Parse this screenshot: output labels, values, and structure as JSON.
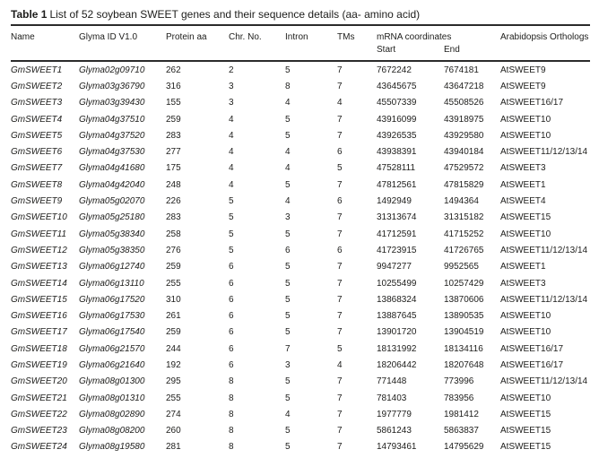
{
  "title": {
    "label": "Table 1",
    "text": "List of 52 soybean SWEET genes and their sequence details (aa- amino acid)"
  },
  "table": {
    "header": {
      "name": "Name",
      "glyma_id": "Glyma ID V1.0",
      "protein_aa": "Protein aa",
      "chr_no": "Chr. No.",
      "intron": "Intron",
      "tms": "TMs",
      "mrna": "mRNA coordinates",
      "start": "Start",
      "end": "End",
      "orthologs": "Arabidopsis Orthologs"
    },
    "rows": [
      {
        "name": "GmSWEET1",
        "glyma_id": "Glyma02g09710",
        "protein_aa": "262",
        "chr_no": "2",
        "intron": "5",
        "tms": "7",
        "mrna_start": "7672242",
        "mrna_end": "7674181",
        "ortholog": "AtSWEET9"
      },
      {
        "name": "GmSWEET2",
        "glyma_id": "Glyma03g36790",
        "protein_aa": "316",
        "chr_no": "3",
        "intron": "8",
        "tms": "7",
        "mrna_start": "43645675",
        "mrna_end": "43647218",
        "ortholog": "AtSWEET9"
      },
      {
        "name": "GmSWEET3",
        "glyma_id": "Glyma03g39430",
        "protein_aa": "155",
        "chr_no": "3",
        "intron": "4",
        "tms": "4",
        "mrna_start": "45507339",
        "mrna_end": "45508526",
        "ortholog": "AtSWEET16/17"
      },
      {
        "name": "GmSWEET4",
        "glyma_id": "Glyma04g37510",
        "protein_aa": "259",
        "chr_no": "4",
        "intron": "5",
        "tms": "7",
        "mrna_start": "43916099",
        "mrna_end": "43918975",
        "ortholog": "AtSWEET10"
      },
      {
        "name": "GmSWEET5",
        "glyma_id": "Glyma04g37520",
        "protein_aa": "283",
        "chr_no": "4",
        "intron": "5",
        "tms": "7",
        "mrna_start": "43926535",
        "mrna_end": "43929580",
        "ortholog": "AtSWEET10"
      },
      {
        "name": "GmSWEET6",
        "glyma_id": "Glyma04g37530",
        "protein_aa": "277",
        "chr_no": "4",
        "intron": "4",
        "tms": "6",
        "mrna_start": "43938391",
        "mrna_end": "43940184",
        "ortholog": "AtSWEET11/12/13/14"
      },
      {
        "name": "GmSWEET7",
        "glyma_id": "Glyma04g41680",
        "protein_aa": "175",
        "chr_no": "4",
        "intron": "4",
        "tms": "5",
        "mrna_start": "47528111",
        "mrna_end": "47529572",
        "ortholog": "AtSWEET3"
      },
      {
        "name": "GmSWEET8",
        "glyma_id": "Glyma04g42040",
        "protein_aa": "248",
        "chr_no": "4",
        "intron": "5",
        "tms": "7",
        "mrna_start": "47812561",
        "mrna_end": "47815829",
        "ortholog": "AtSWEET1"
      },
      {
        "name": "GmSWEET9",
        "glyma_id": "Glyma05g02070",
        "protein_aa": "226",
        "chr_no": "5",
        "intron": "4",
        "tms": "6",
        "mrna_start": "1492949",
        "mrna_end": "1494364",
        "ortholog": "AtSWEET4"
      },
      {
        "name": "GmSWEET10",
        "glyma_id": "Glyma05g25180",
        "protein_aa": "283",
        "chr_no": "5",
        "intron": "3",
        "tms": "7",
        "mrna_start": "31313674",
        "mrna_end": "31315182",
        "ortholog": "AtSWEET15"
      },
      {
        "name": "GmSWEET11",
        "glyma_id": "Glyma05g38340",
        "protein_aa": "258",
        "chr_no": "5",
        "intron": "5",
        "tms": "7",
        "mrna_start": "41712591",
        "mrna_end": "41715252",
        "ortholog": "AtSWEET10"
      },
      {
        "name": "GmSWEET12",
        "glyma_id": "Glyma05g38350",
        "protein_aa": "276",
        "chr_no": "5",
        "intron": "6",
        "tms": "6",
        "mrna_start": "41723915",
        "mrna_end": "41726765",
        "ortholog": "AtSWEET11/12/13/14"
      },
      {
        "name": "GmSWEET13",
        "glyma_id": "Glyma06g12740",
        "protein_aa": "259",
        "chr_no": "6",
        "intron": "5",
        "tms": "7",
        "mrna_start": "9947277",
        "mrna_end": "9952565",
        "ortholog": "AtSWEET1"
      },
      {
        "name": "GmSWEET14",
        "glyma_id": "Glyma06g13110",
        "protein_aa": "255",
        "chr_no": "6",
        "intron": "5",
        "tms": "7",
        "mrna_start": "10255499",
        "mrna_end": "10257429",
        "ortholog": "AtSWEET3"
      },
      {
        "name": "GmSWEET15",
        "glyma_id": "Glyma06g17520",
        "protein_aa": "310",
        "chr_no": "6",
        "intron": "5",
        "tms": "7",
        "mrna_start": "13868324",
        "mrna_end": "13870606",
        "ortholog": "AtSWEET11/12/13/14"
      },
      {
        "name": "GmSWEET16",
        "glyma_id": "Glyma06g17530",
        "protein_aa": "261",
        "chr_no": "6",
        "intron": "5",
        "tms": "7",
        "mrna_start": "13887645",
        "mrna_end": "13890535",
        "ortholog": "AtSWEET10"
      },
      {
        "name": "GmSWEET17",
        "glyma_id": "Glyma06g17540",
        "protein_aa": "259",
        "chr_no": "6",
        "intron": "5",
        "tms": "7",
        "mrna_start": "13901720",
        "mrna_end": "13904519",
        "ortholog": "AtSWEET10"
      },
      {
        "name": "GmSWEET18",
        "glyma_id": "Glyma06g21570",
        "protein_aa": "244",
        "chr_no": "6",
        "intron": "7",
        "tms": "5",
        "mrna_start": "18131992",
        "mrna_end": "18134116",
        "ortholog": "AtSWEET16/17"
      },
      {
        "name": "GmSWEET19",
        "glyma_id": "Glyma06g21640",
        "protein_aa": "192",
        "chr_no": "6",
        "intron": "3",
        "tms": "4",
        "mrna_start": "18206442",
        "mrna_end": "18207648",
        "ortholog": "AtSWEET16/17"
      },
      {
        "name": "GmSWEET20",
        "glyma_id": "Glyma08g01300",
        "protein_aa": "295",
        "chr_no": "8",
        "intron": "5",
        "tms": "7",
        "mrna_start": "771448",
        "mrna_end": "773996",
        "ortholog": "AtSWEET11/12/13/14"
      },
      {
        "name": "GmSWEET21",
        "glyma_id": "Glyma08g01310",
        "protein_aa": "255",
        "chr_no": "8",
        "intron": "5",
        "tms": "7",
        "mrna_start": "781403",
        "mrna_end": "783956",
        "ortholog": "AtSWEET10"
      },
      {
        "name": "GmSWEET22",
        "glyma_id": "Glyma08g02890",
        "protein_aa": "274",
        "chr_no": "8",
        "intron": "4",
        "tms": "7",
        "mrna_start": "1977779",
        "mrna_end": "1981412",
        "ortholog": "AtSWEET15"
      },
      {
        "name": "GmSWEET23",
        "glyma_id": "Glyma08g08200",
        "protein_aa": "260",
        "chr_no": "8",
        "intron": "5",
        "tms": "7",
        "mrna_start": "5861243",
        "mrna_end": "5863837",
        "ortholog": "AtSWEET15"
      },
      {
        "name": "GmSWEET24",
        "glyma_id": "Glyma08g19580",
        "protein_aa": "281",
        "chr_no": "8",
        "intron": "5",
        "tms": "7",
        "mrna_start": "14793461",
        "mrna_end": "14795629",
        "ortholog": "AtSWEET15"
      }
    ]
  }
}
